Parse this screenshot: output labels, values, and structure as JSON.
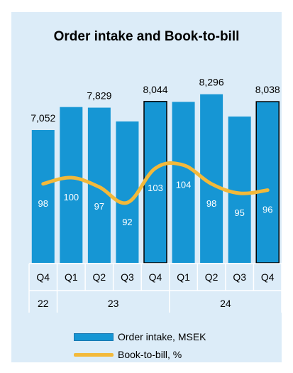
{
  "chart_data": {
    "type": "bar",
    "title": "Order intake and Book-to-bill",
    "quarters": [
      "Q4",
      "Q1",
      "Q2",
      "Q3",
      "Q4",
      "Q1",
      "Q2",
      "Q3",
      "Q4"
    ],
    "year_groups": [
      {
        "label": "22",
        "count": 1
      },
      {
        "label": "23",
        "count": 4
      },
      {
        "label": "24",
        "count": 4
      }
    ],
    "series": [
      {
        "name": "Order intake, MSEK",
        "type": "bar",
        "color": "#1696d4",
        "values": [
          7052,
          7850,
          7829,
          7350,
          8044,
          8030,
          8296,
          7520,
          8038
        ],
        "value_labels": [
          "7,052",
          "",
          "7,829",
          "",
          "8,044",
          "",
          "8,296",
          "",
          "8,038"
        ],
        "highlighted": [
          false,
          false,
          false,
          false,
          true,
          false,
          false,
          false,
          true
        ]
      },
      {
        "name": "Book-to-bill, %",
        "type": "line",
        "color": "#f3b93a",
        "values": [
          98,
          100,
          97,
          92,
          103,
          104,
          98,
          95,
          96
        ],
        "value_labels": [
          "98",
          "100",
          "97",
          "92",
          "103",
          "104",
          "98",
          "95",
          "96"
        ]
      }
    ],
    "legend_position": "bottom",
    "grid": false
  }
}
